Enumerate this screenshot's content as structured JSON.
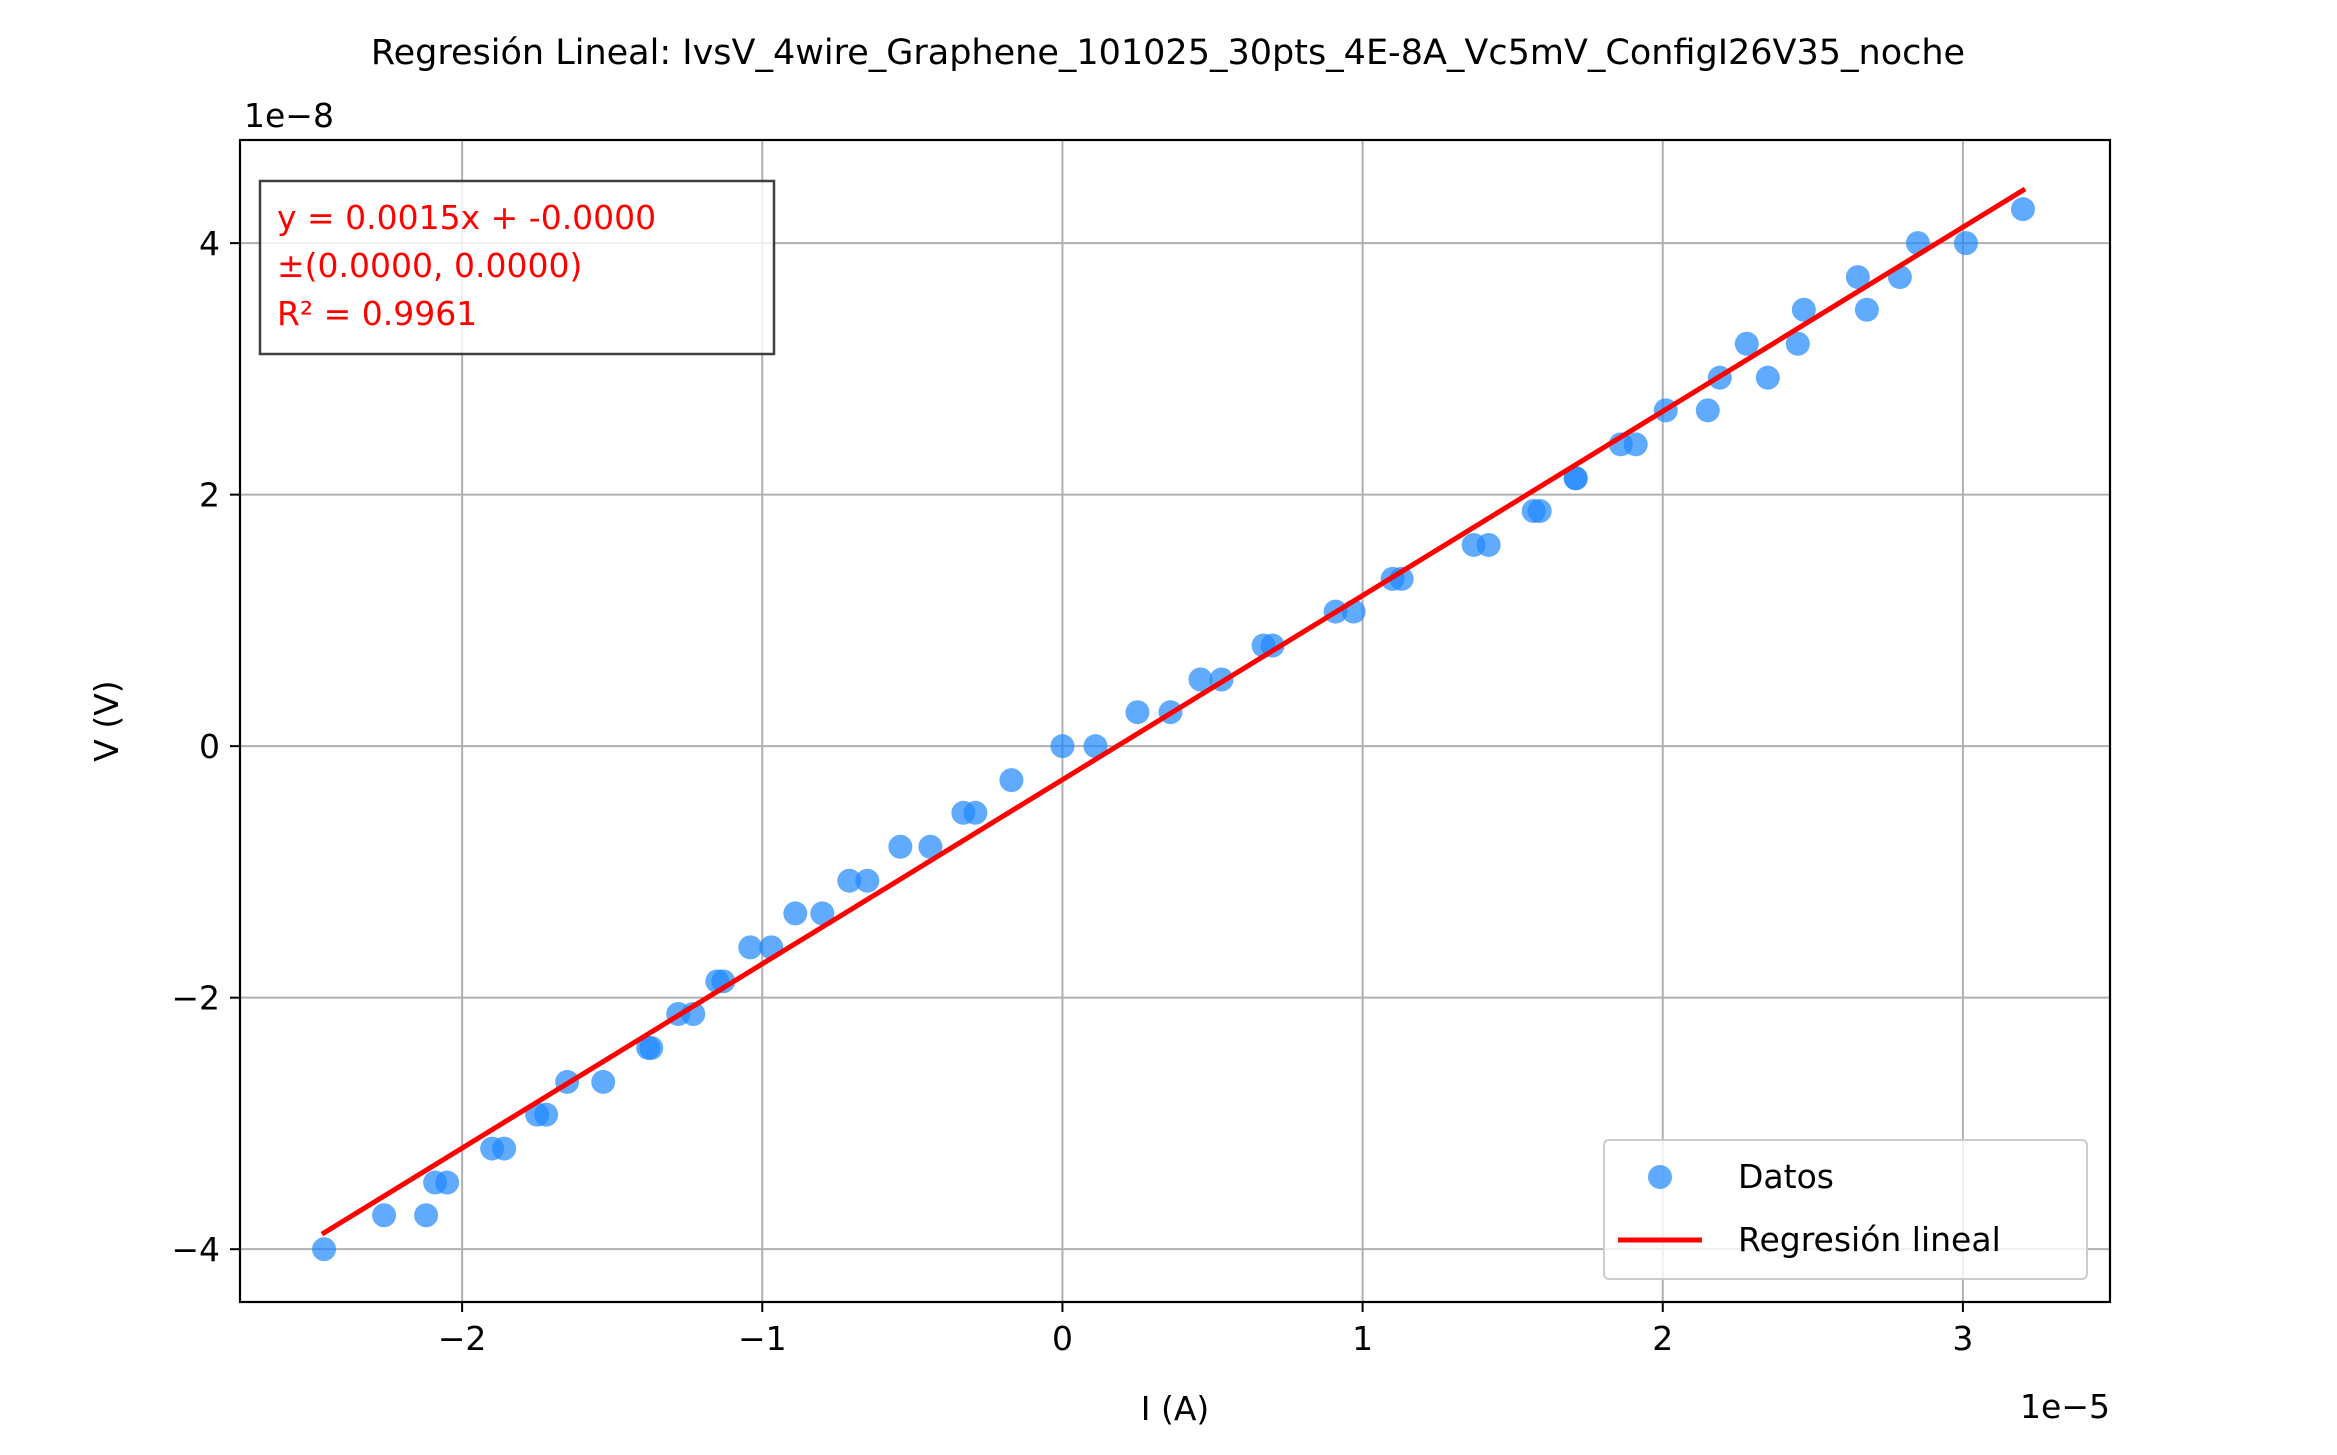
{
  "chart_data": {
    "type": "scatter",
    "title": "Regresión Lineal: IvsV_4wire_Graphene_101025_30pts_4E-8A_Vc5mV_ConfigI26V35_noche",
    "xlabel": "I (A)",
    "ylabel": "V (V)",
    "x_multiplier": "1e−5",
    "y_multiplier": "1e−8",
    "x_unit_scale": 1e-05,
    "y_unit_scale": 1e-08,
    "xlim": [
      -2.74,
      3.49
    ],
    "ylim": [
      -4.42,
      4.82
    ],
    "x_ticks": [
      -2,
      -1,
      0,
      1,
      2,
      3
    ],
    "x_tick_labels": [
      "−2",
      "−1",
      "0",
      "1",
      "2",
      "3"
    ],
    "y_ticks": [
      -4,
      -2,
      0,
      2,
      4
    ],
    "y_tick_labels": [
      "−4",
      "−2",
      "0",
      "2",
      "4"
    ],
    "grid": true,
    "legend_placement": "lower-right",
    "annotation": {
      "lines": [
        "y = 0.0015x + -0.0000",
        "±(0.0000, 0.0000)",
        "R² = 0.9961"
      ],
      "color": "#ff0000",
      "placement": "upper-left"
    },
    "series": [
      {
        "name": "Datos",
        "kind": "scatter",
        "color": "#1e88ff",
        "points": [
          [
            -2.46,
            -4.0
          ],
          [
            -2.26,
            -3.73
          ],
          [
            -2.12,
            -3.73
          ],
          [
            -2.09,
            -3.47
          ],
          [
            -2.05,
            -3.47
          ],
          [
            -1.9,
            -3.2
          ],
          [
            -1.86,
            -3.2
          ],
          [
            -1.75,
            -2.93
          ],
          [
            -1.72,
            -2.93
          ],
          [
            -1.65,
            -2.67
          ],
          [
            -1.53,
            -2.67
          ],
          [
            -1.38,
            -2.4
          ],
          [
            -1.37,
            -2.4
          ],
          [
            -1.28,
            -2.13
          ],
          [
            -1.23,
            -2.13
          ],
          [
            -1.15,
            -1.87
          ],
          [
            -1.13,
            -1.87
          ],
          [
            -1.04,
            -1.6
          ],
          [
            -0.97,
            -1.6
          ],
          [
            -0.89,
            -1.33
          ],
          [
            -0.8,
            -1.33
          ],
          [
            -0.71,
            -1.07
          ],
          [
            -0.65,
            -1.07
          ],
          [
            -0.54,
            -0.8
          ],
          [
            -0.44,
            -0.8
          ],
          [
            -0.33,
            -0.53
          ],
          [
            -0.29,
            -0.53
          ],
          [
            -0.17,
            -0.27
          ],
          [
            0.0,
            0.0
          ],
          [
            0.11,
            0.0
          ],
          [
            0.25,
            0.27
          ],
          [
            0.36,
            0.27
          ],
          [
            0.46,
            0.53
          ],
          [
            0.53,
            0.53
          ],
          [
            0.67,
            0.8
          ],
          [
            0.7,
            0.8
          ],
          [
            0.91,
            1.07
          ],
          [
            0.97,
            1.07
          ],
          [
            1.1,
            1.33
          ],
          [
            1.13,
            1.33
          ],
          [
            1.37,
            1.6
          ],
          [
            1.42,
            1.6
          ],
          [
            1.57,
            1.87
          ],
          [
            1.59,
            1.87
          ],
          [
            1.71,
            2.13
          ],
          [
            1.71,
            2.13
          ],
          [
            1.86,
            2.4
          ],
          [
            1.91,
            2.4
          ],
          [
            2.01,
            2.67
          ],
          [
            2.15,
            2.67
          ],
          [
            2.19,
            2.93
          ],
          [
            2.35,
            2.93
          ],
          [
            2.28,
            3.2
          ],
          [
            2.45,
            3.2
          ],
          [
            2.47,
            3.47
          ],
          [
            2.68,
            3.47
          ],
          [
            2.65,
            3.73
          ],
          [
            2.79,
            3.73
          ],
          [
            2.85,
            4.0
          ],
          [
            3.01,
            4.0
          ],
          [
            3.2,
            4.27
          ]
        ]
      },
      {
        "name": "Regresión lineal",
        "kind": "line",
        "color": "#ff0000",
        "points": [
          [
            -2.46,
            -3.87
          ],
          [
            3.2,
            4.42
          ]
        ]
      }
    ]
  }
}
